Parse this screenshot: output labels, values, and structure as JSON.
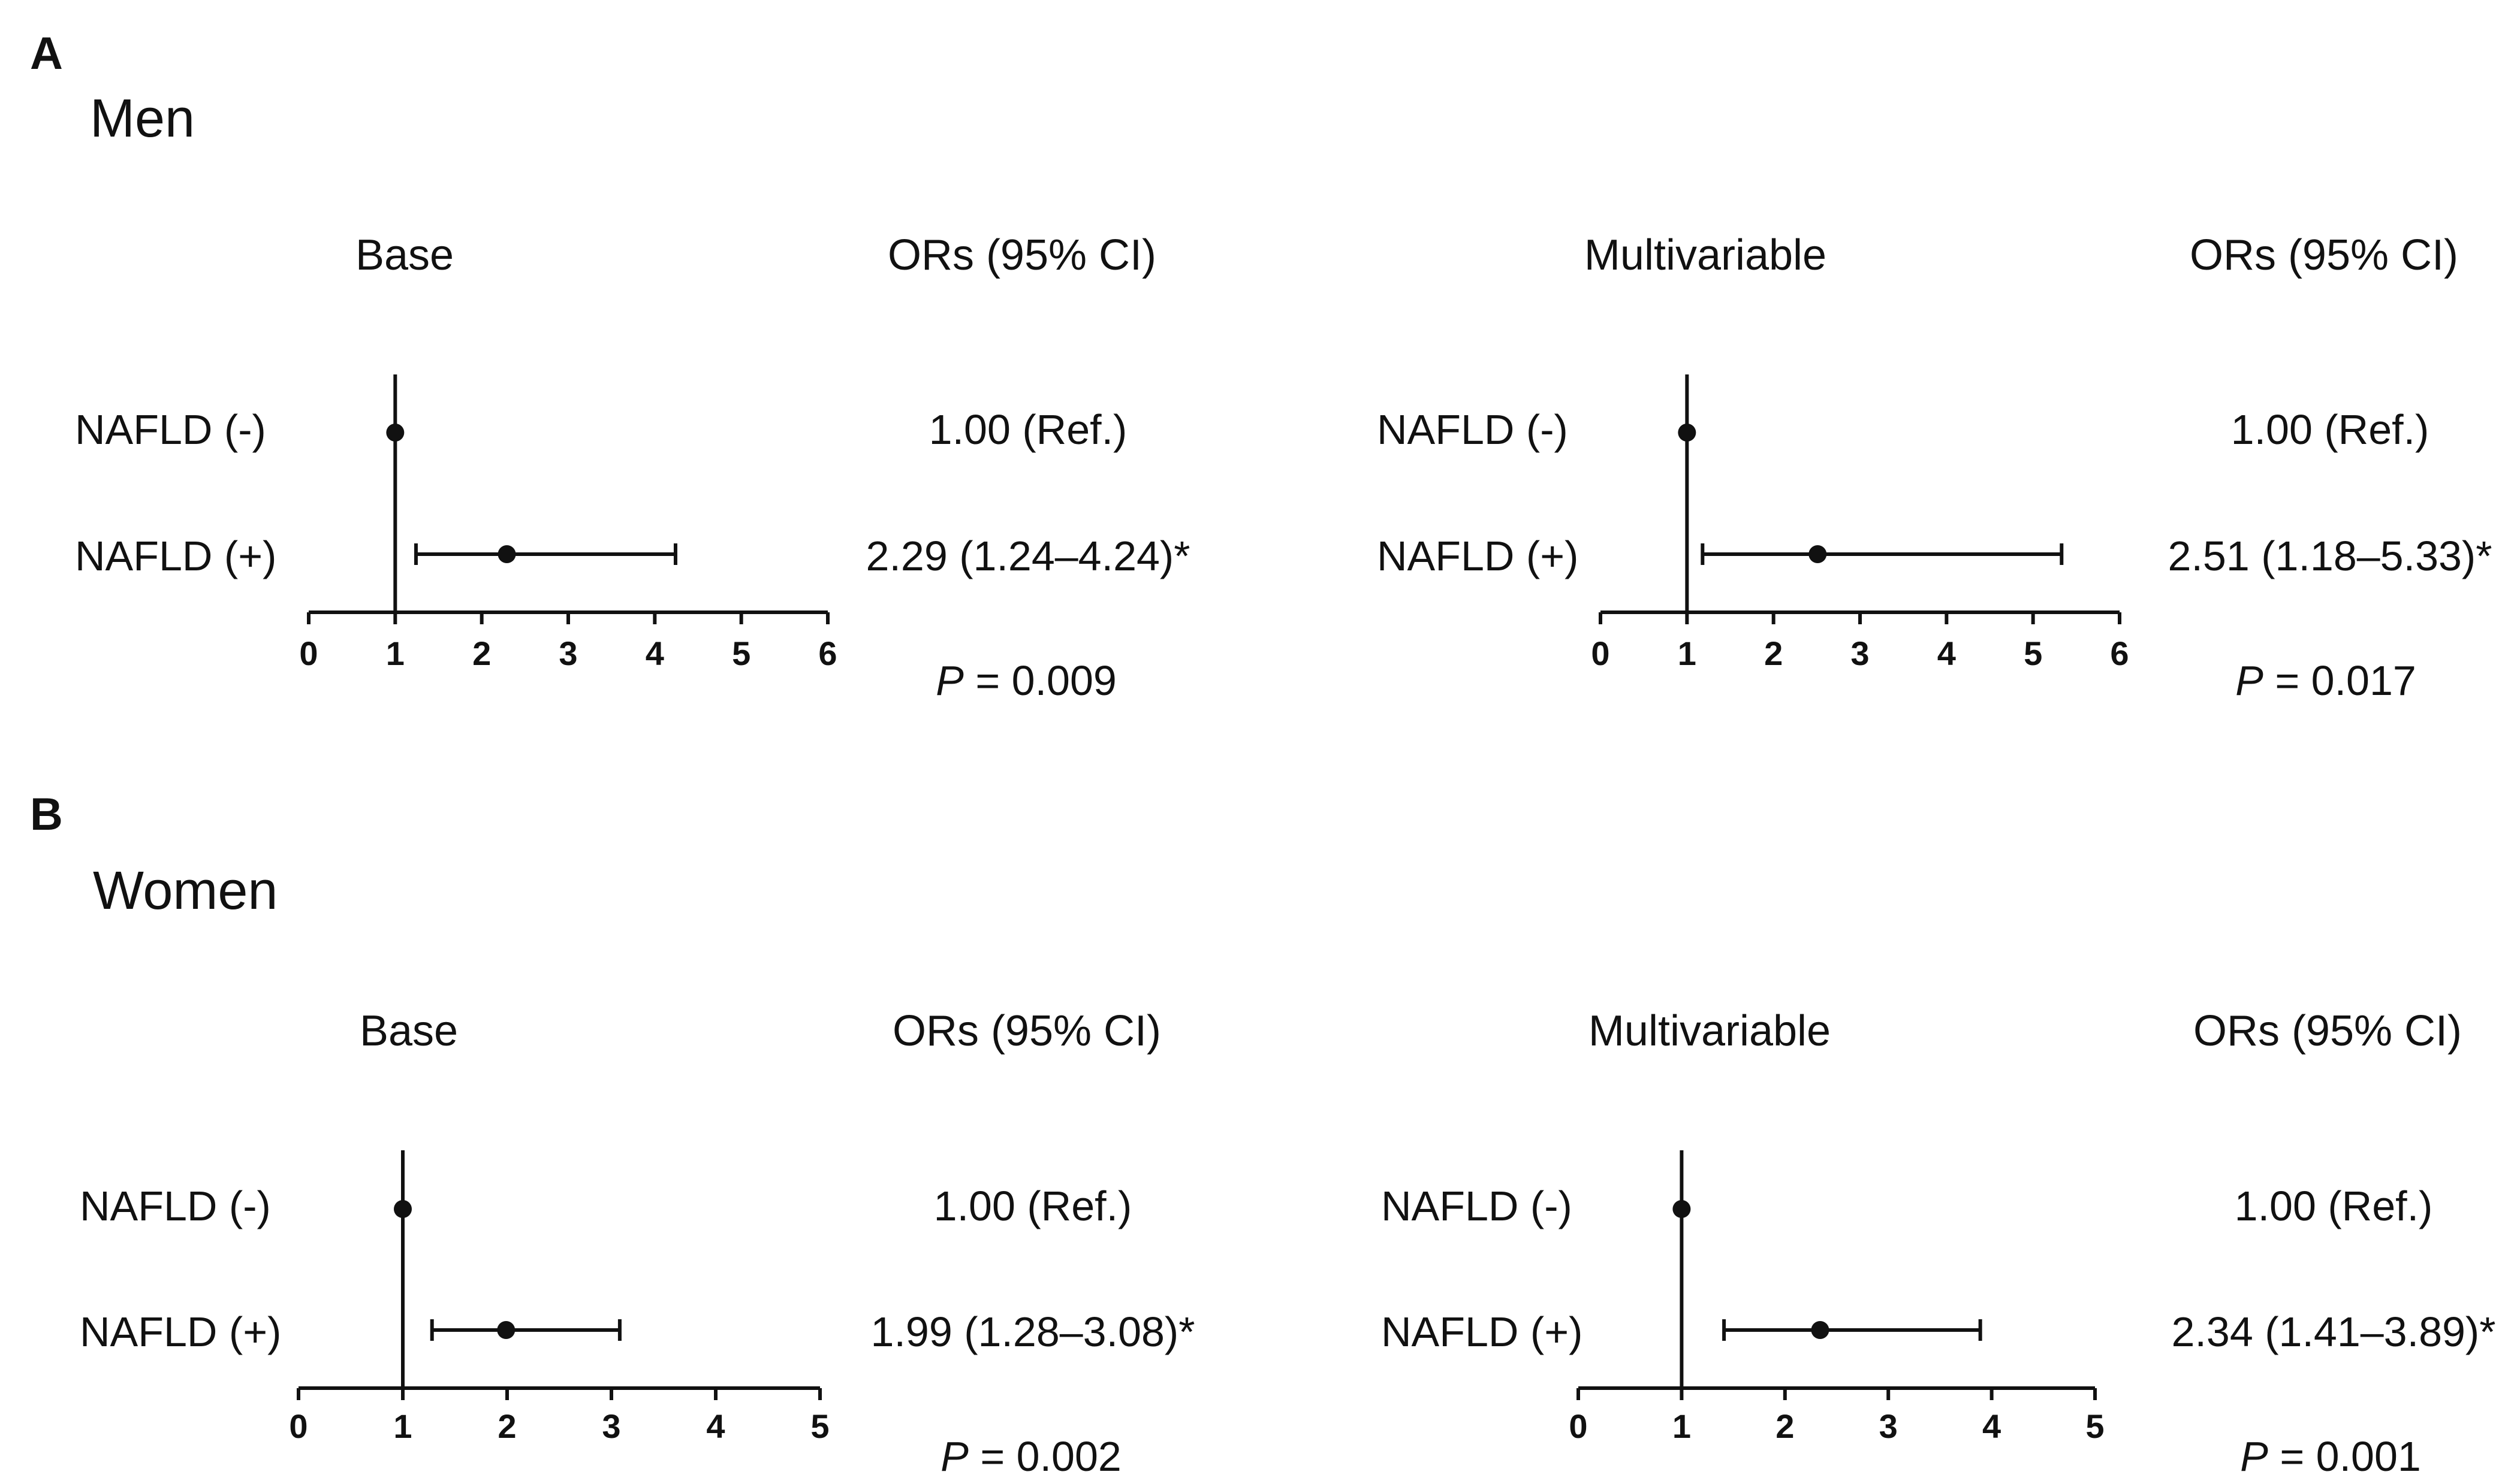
{
  "panels": [
    {
      "letter": "A",
      "title": "Men",
      "plots": [
        {
          "header": "Base",
          "or_header": "ORs (95% CI)",
          "p_prefix": "P",
          "p_value": "= 0.009",
          "rows": [
            {
              "label": "NAFLD (-)",
              "or_text": "1.00 (Ref.)"
            },
            {
              "label": "NAFLD (+)",
              "or_text": "2.29 (1.24–4.24)*"
            }
          ]
        },
        {
          "header": "Multivariable",
          "or_header": "ORs (95% CI)",
          "p_prefix": "P",
          "p_value": "= 0.017",
          "rows": [
            {
              "label": "NAFLD (-)",
              "or_text": "1.00 (Ref.)"
            },
            {
              "label": "NAFLD (+)",
              "or_text": "2.51 (1.18–5.33)*"
            }
          ]
        }
      ]
    },
    {
      "letter": "B",
      "title": "Women",
      "plots": [
        {
          "header": "Base",
          "or_header": "ORs (95% CI)",
          "p_prefix": "P",
          "p_value": "= 0.002",
          "rows": [
            {
              "label": "NAFLD (-)",
              "or_text": "1.00 (Ref.)"
            },
            {
              "label": "NAFLD (+)",
              "or_text": "1.99 (1.28–3.08)*"
            }
          ]
        },
        {
          "header": "Multivariable",
          "or_header": "ORs (95% CI)",
          "p_prefix": "P",
          "p_value": "= 0.001",
          "rows": [
            {
              "label": "NAFLD (-)",
              "or_text": "1.00 (Ref.)"
            },
            {
              "label": "NAFLD (+)",
              "or_text": "2.34 (1.41–3.89)*"
            }
          ]
        }
      ]
    }
  ],
  "chart_data": [
    {
      "type": "forest",
      "panel": "A",
      "group": "Men",
      "model": "Base",
      "xlim": [
        0,
        6
      ],
      "xticks": [
        "0",
        "1",
        "2",
        "3",
        "4",
        "5",
        "6"
      ],
      "reference_line": 1,
      "categories": [
        "NAFLD (-)",
        "NAFLD (+)"
      ],
      "points": [
        {
          "label": "NAFLD (-)",
          "or": 1.0,
          "lower": null,
          "upper": null
        },
        {
          "label": "NAFLD (+)",
          "or": 2.29,
          "lower": 1.24,
          "upper": 4.24
        }
      ]
    },
    {
      "type": "forest",
      "panel": "A",
      "group": "Men",
      "model": "Multivariable",
      "xlim": [
        0,
        6
      ],
      "xticks": [
        "0",
        "1",
        "2",
        "3",
        "4",
        "5",
        "6"
      ],
      "reference_line": 1,
      "categories": [
        "NAFLD (-)",
        "NAFLD (+)"
      ],
      "points": [
        {
          "label": "NAFLD (-)",
          "or": 1.0,
          "lower": null,
          "upper": null
        },
        {
          "label": "NAFLD (+)",
          "or": 2.51,
          "lower": 1.18,
          "upper": 5.33
        }
      ]
    },
    {
      "type": "forest",
      "panel": "B",
      "group": "Women",
      "model": "Base",
      "xlim": [
        0,
        5
      ],
      "xticks": [
        "0",
        "1",
        "2",
        "3",
        "4",
        "5"
      ],
      "reference_line": 1,
      "categories": [
        "NAFLD (-)",
        "NAFLD (+)"
      ],
      "points": [
        {
          "label": "NAFLD (-)",
          "or": 1.0,
          "lower": null,
          "upper": null
        },
        {
          "label": "NAFLD (+)",
          "or": 1.99,
          "lower": 1.28,
          "upper": 3.08
        }
      ]
    },
    {
      "type": "forest",
      "panel": "B",
      "group": "Women",
      "model": "Multivariable",
      "xlim": [
        0,
        5
      ],
      "xticks": [
        "0",
        "1",
        "2",
        "3",
        "4",
        "5"
      ],
      "reference_line": 1,
      "categories": [
        "NAFLD (-)",
        "NAFLD (+)"
      ],
      "points": [
        {
          "label": "NAFLD (-)",
          "or": 1.0,
          "lower": null,
          "upper": null
        },
        {
          "label": "NAFLD (+)",
          "or": 2.34,
          "lower": 1.41,
          "upper": 3.89
        }
      ]
    }
  ]
}
